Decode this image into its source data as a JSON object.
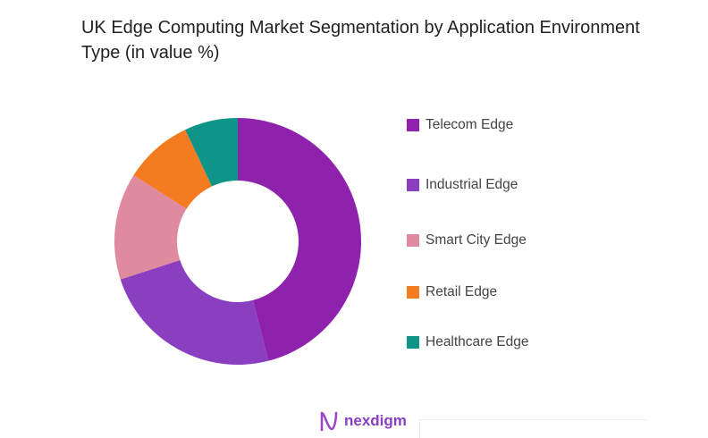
{
  "chart_data": {
    "type": "pie",
    "donut": true,
    "title": "UK Edge Computing Market Segmentation by Application Environment Type (in value %)",
    "categories": [
      "Telecom Edge",
      "Industrial Edge",
      "Smart City Edge",
      "Retail Edge",
      "Healthcare Edge"
    ],
    "values": [
      46,
      24,
      14,
      9,
      7
    ],
    "colors": [
      "#8e22ad",
      "#8a3fc0",
      "#e08aa0",
      "#f47b20",
      "#0f9488"
    ],
    "legend_position": "right"
  },
  "footer": {
    "logo_text": "nexdigm"
  }
}
